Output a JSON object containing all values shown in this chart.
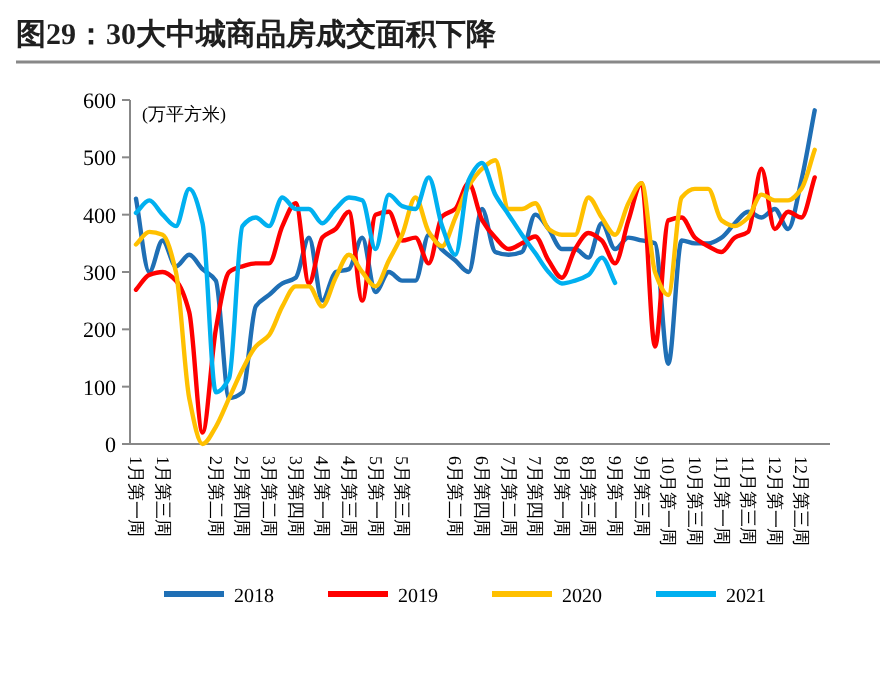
{
  "chart_data": {
    "type": "line",
    "title": "图29：30大中城商品房成交面积下降",
    "ylabel": "(万平方米)",
    "categories": [
      "1月第一周",
      null,
      "1月第三周",
      null,
      null,
      null,
      "2月第二周",
      null,
      "2月第四周",
      null,
      "3月第二周",
      null,
      "3月第四周",
      null,
      "4月第一周",
      null,
      "4月第三周",
      null,
      "5月第一周",
      null,
      "5月第三周",
      null,
      null,
      null,
      "6月第二周",
      null,
      "6月第四周",
      null,
      "7月第二周",
      null,
      "7月第四周",
      null,
      "8月第一周",
      null,
      "8月第三周",
      null,
      "9月第一周",
      null,
      "9月第三周",
      null,
      "10月第一周",
      null,
      "10月第三周",
      null,
      "11月第一周",
      null,
      "11月第三周",
      null,
      "12月第一周",
      null,
      "12月第三周",
      null
    ],
    "series": [
      {
        "name": "2018",
        "color": "#1f6fb5",
        "values": [
          428,
          300,
          355,
          310,
          330,
          305,
          285,
          80,
          90,
          240,
          260,
          280,
          290,
          360,
          250,
          300,
          305,
          360,
          265,
          300,
          285,
          285,
          365,
          339,
          320,
          300,
          410,
          335,
          330,
          335,
          400,
          375,
          340,
          340,
          325,
          385,
          340,
          360,
          355,
          350,
          140,
          355,
          350,
          350,
          360,
          385,
          405,
          395,
          410,
          375,
          460,
          582
        ]
      },
      {
        "name": "2019",
        "color": "#ff0000",
        "values": [
          269,
          295,
          300,
          285,
          230,
          20,
          200,
          300,
          310,
          315,
          315,
          380,
          420,
          280,
          360,
          375,
          405,
          250,
          400,
          405,
          355,
          360,
          315,
          397,
          410,
          455,
          391,
          360,
          340,
          350,
          362,
          320,
          290,
          340,
          368,
          355,
          315,
          390,
          455,
          170,
          390,
          395,
          360,
          345,
          335,
          360,
          370,
          480,
          375,
          405,
          395,
          465
        ]
      },
      {
        "name": "2020",
        "color": "#ffc000",
        "values": [
          348,
          370,
          365,
          300,
          80,
          0,
          30,
          80,
          130,
          170,
          190,
          240,
          275,
          275,
          240,
          290,
          330,
          300,
          275,
          320,
          365,
          430,
          370,
          345,
          395,
          450,
          480,
          495,
          410,
          410,
          420,
          375,
          365,
          365,
          430,
          395,
          365,
          420,
          455,
          300,
          260,
          430,
          445,
          445,
          390,
          380,
          395,
          435,
          425,
          425,
          445,
          513
        ]
      },
      {
        "name": "2021",
        "color": "#00b0f0",
        "values": [
          403,
          425,
          400,
          380,
          445,
          385,
          90,
          115,
          380,
          395,
          380,
          430,
          410,
          410,
          385,
          410,
          430,
          425,
          340,
          435,
          415,
          410,
          465,
          380,
          330,
          460,
          490,
          435,
          400,
          365,
          333,
          300,
          280,
          285,
          295,
          325,
          281,
          null,
          null,
          null,
          null,
          null,
          null,
          null,
          null,
          null,
          null,
          null,
          null,
          null,
          null,
          null
        ]
      }
    ],
    "ylim": [
      0,
      600
    ],
    "yticks": [
      0,
      100,
      200,
      300,
      400,
      500,
      600
    ],
    "legend": "bottom"
  }
}
